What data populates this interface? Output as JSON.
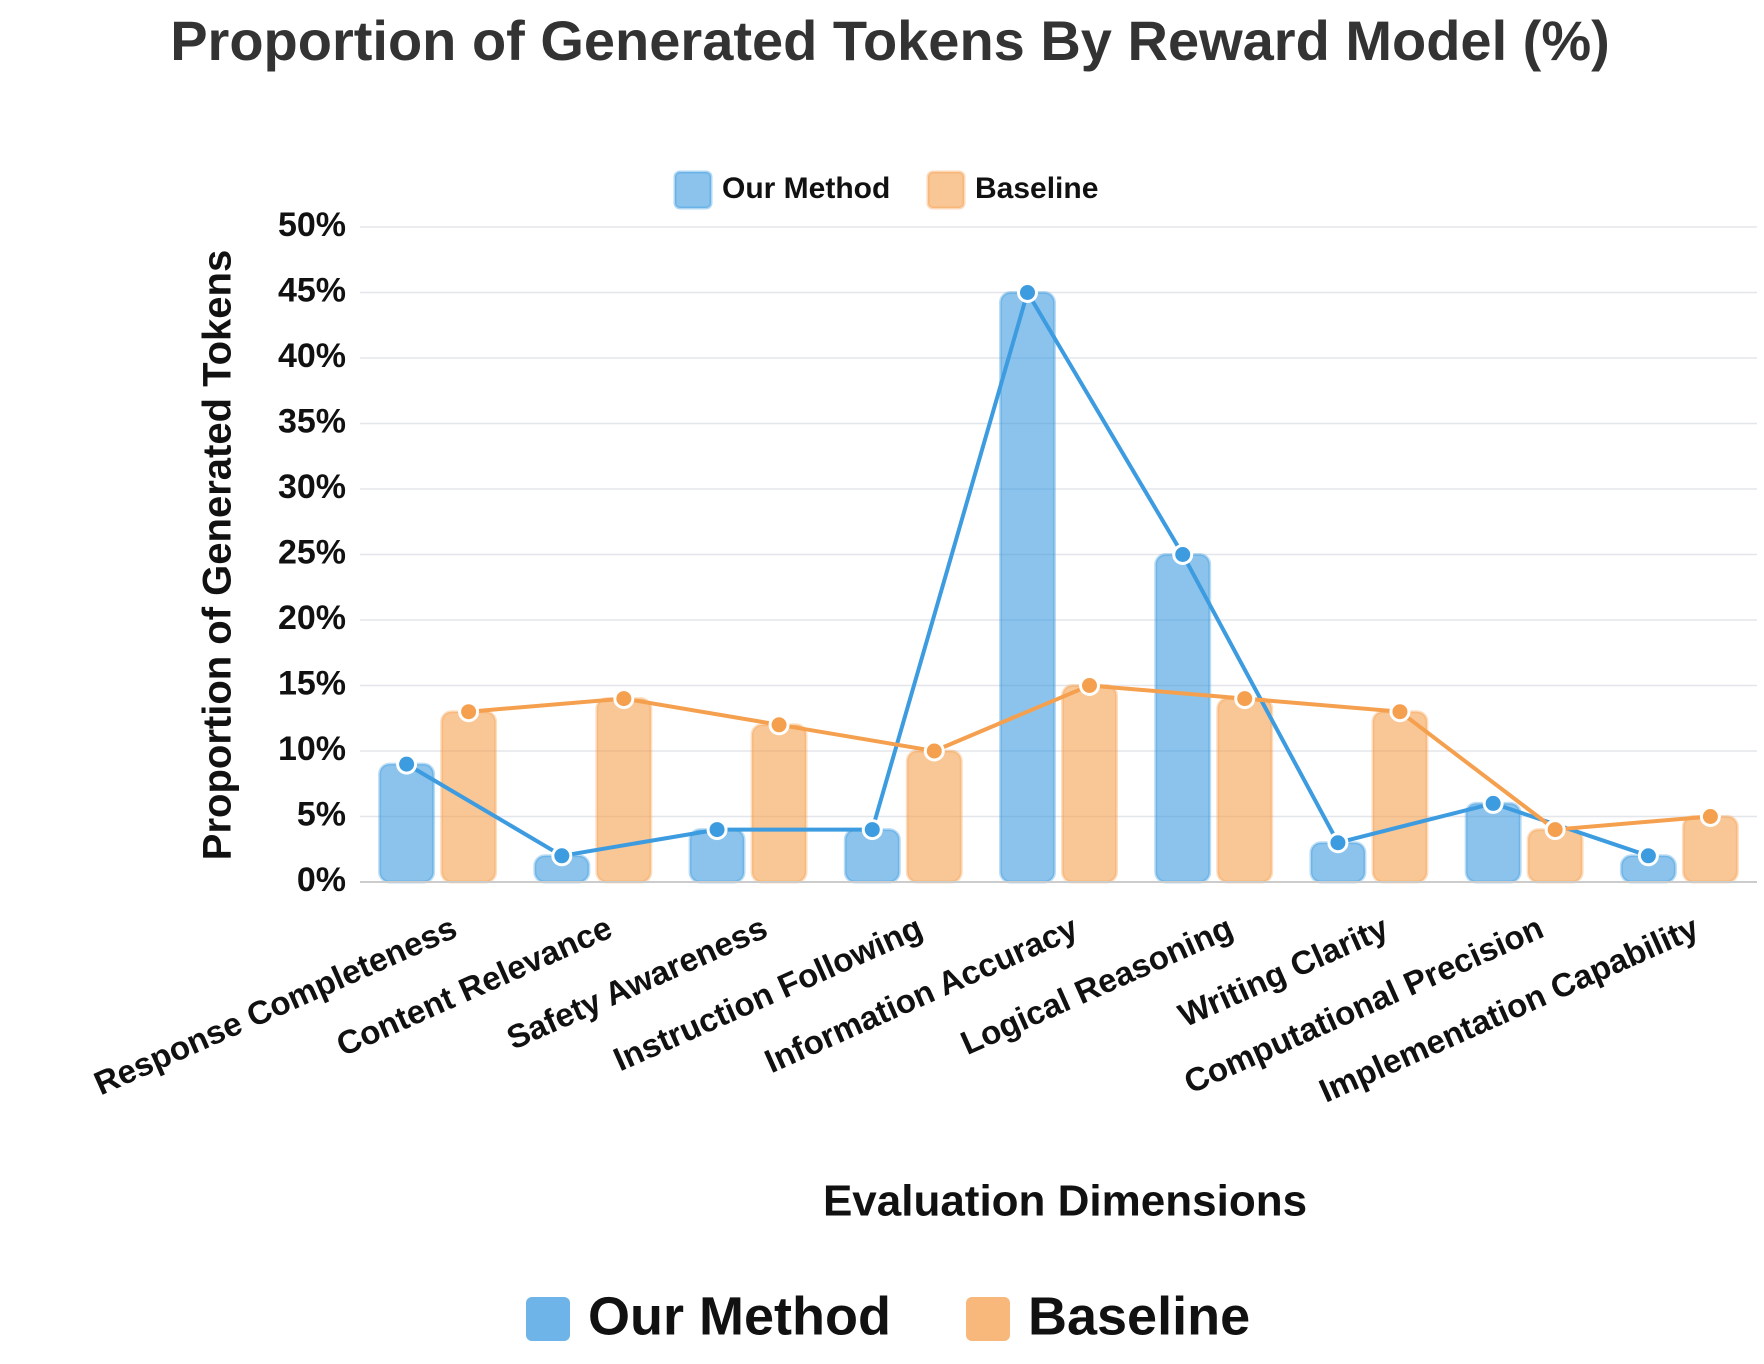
{
  "chart_data": {
    "type": "bar-line",
    "title": "Proportion of Generated Tokens By Reward Model (%)",
    "x_label": "Evaluation Dimensions",
    "y_label": "Proportion of Generated Tokens",
    "categories": [
      "Response Completeness",
      "Content Relevance",
      "Safety Awareness",
      "Instruction Following",
      "Information Accuracy",
      "Logical Reasoning",
      "Writing Clarity",
      "Computational Precision",
      "Implementation Capability"
    ],
    "series": [
      {
        "name": "Our Method",
        "color": "#3d9be0",
        "values": [
          9,
          2,
          4,
          4,
          45,
          25,
          3,
          6,
          2
        ]
      },
      {
        "name": "Baseline",
        "color": "#f5a04f",
        "values": [
          13,
          14,
          12,
          10,
          15,
          14,
          13,
          4,
          5
        ]
      }
    ],
    "ylim": [
      0,
      50
    ],
    "yticks": [
      {
        "value": 0,
        "label": "0%"
      },
      {
        "value": 5,
        "label": "5%"
      },
      {
        "value": 10,
        "label": "10%"
      },
      {
        "value": 15,
        "label": "15%"
      },
      {
        "value": 20,
        "label": "20%"
      },
      {
        "value": 25,
        "label": "25%"
      },
      {
        "value": 30,
        "label": "30%"
      },
      {
        "value": 35,
        "label": "35%"
      },
      {
        "value": 40,
        "label": "40%"
      },
      {
        "value": 45,
        "label": "45%"
      },
      {
        "value": 50,
        "label": "50%"
      }
    ],
    "grid": true
  }
}
